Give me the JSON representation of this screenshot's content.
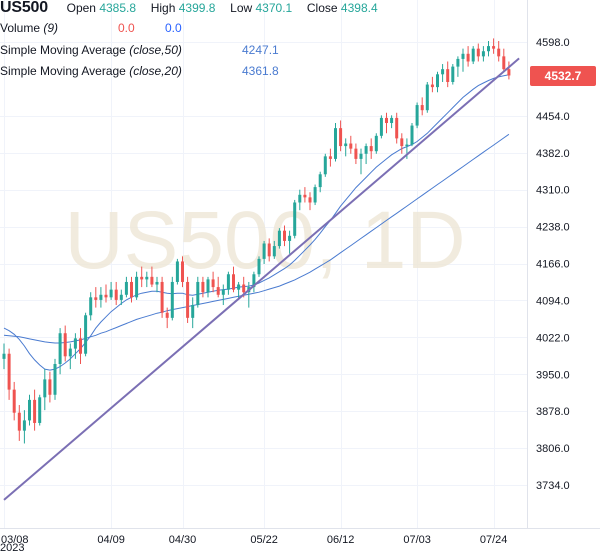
{
  "legend": {
    "symbol": "US500",
    "open_label": "Open",
    "open": "4385.8",
    "high_label": "High",
    "high": "4399.8",
    "low_label": "Low",
    "low": "4370.1",
    "close_label": "Close",
    "close": "4398.4",
    "volume_label": "Volume",
    "volume_param": "(9)",
    "volume_v1": "0.0",
    "volume_v2": "0.0",
    "sma50_label": "Simple Moving Average",
    "sma50_param": "(close,50)",
    "sma50_value": "4247.1",
    "sma20_label": "Simple Moving Average",
    "sma20_param": "(close,20)",
    "sma20_value": "4361.8"
  },
  "watermark": "US500, 1D",
  "last_price": "4532.7",
  "x_year": "2023",
  "colors": {
    "up": "#26a69a",
    "down": "#ef5350",
    "sma20": "#4a7bd0",
    "sma50": "#4a7bd0",
    "trendline": "#7b6fb4"
  },
  "chart_data": {
    "type": "candlestick",
    "title": "US500",
    "timeframe": "1D",
    "ylim": [
      3680,
      4620
    ],
    "yticks": [
      3734,
      3806,
      3878,
      3950,
      4022,
      4094,
      4166,
      4238,
      4310,
      4382,
      4454,
      4598
    ],
    "ytick_labels": [
      "3734.0",
      "3806.0",
      "3878.0",
      "3950.0",
      "4022.0",
      "4094.0",
      "4166.0",
      "4238.0",
      "4310.0",
      "4382.0",
      "4454.0",
      "4598.0"
    ],
    "xticks": [
      "03/08",
      "04/09",
      "04/30",
      "05/22",
      "06/12",
      "07/03",
      "07/24"
    ],
    "xtick_index": [
      0,
      21,
      35,
      51,
      66,
      81,
      96
    ],
    "grid": true,
    "candles": [
      [
        3980,
        4010,
        3960,
        3990
      ],
      [
        3990,
        4000,
        3900,
        3920
      ],
      [
        3920,
        3935,
        3860,
        3875
      ],
      [
        3875,
        3890,
        3820,
        3840
      ],
      [
        3840,
        3880,
        3815,
        3860
      ],
      [
        3860,
        3910,
        3850,
        3900
      ],
      [
        3900,
        3920,
        3840,
        3855
      ],
      [
        3855,
        3910,
        3850,
        3905
      ],
      [
        3905,
        3960,
        3880,
        3940
      ],
      [
        3940,
        3955,
        3895,
        3910
      ],
      [
        3910,
        3980,
        3900,
        3970
      ],
      [
        3970,
        4040,
        3950,
        4030
      ],
      [
        4030,
        4045,
        3975,
        3985
      ],
      [
        3985,
        4010,
        3960,
        4000
      ],
      [
        4000,
        4030,
        3980,
        4020
      ],
      [
        4020,
        4040,
        3970,
        3990
      ],
      [
        3990,
        4070,
        3985,
        4065
      ],
      [
        4065,
        4110,
        4055,
        4100
      ],
      [
        4100,
        4120,
        4080,
        4095
      ],
      [
        4095,
        4120,
        4080,
        4105
      ],
      [
        4105,
        4125,
        4090,
        4100
      ],
      [
        4100,
        4130,
        4095,
        4115
      ],
      [
        4115,
        4130,
        4085,
        4095
      ],
      [
        4095,
        4115,
        4085,
        4105
      ],
      [
        4105,
        4140,
        4100,
        4130
      ],
      [
        4130,
        4140,
        4090,
        4100
      ],
      [
        4100,
        4150,
        4095,
        4140
      ],
      [
        4140,
        4160,
        4120,
        4135
      ],
      [
        4135,
        4150,
        4120,
        4140
      ],
      [
        4140,
        4160,
        4120,
        4125
      ],
      [
        4125,
        4140,
        4110,
        4130
      ],
      [
        4130,
        4140,
        4060,
        4070
      ],
      [
        4070,
        4080,
        4040,
        4060
      ],
      [
        4060,
        4140,
        4055,
        4130
      ],
      [
        4130,
        4175,
        4125,
        4170
      ],
      [
        4170,
        4180,
        4120,
        4130
      ],
      [
        4130,
        4140,
        4050,
        4060
      ],
      [
        4060,
        4100,
        4040,
        4085
      ],
      [
        4085,
        4140,
        4080,
        4130
      ],
      [
        4130,
        4140,
        4100,
        4110
      ],
      [
        4110,
        4140,
        4100,
        4135
      ],
      [
        4135,
        4150,
        4110,
        4120
      ],
      [
        4120,
        4140,
        4100,
        4105
      ],
      [
        4105,
        4125,
        4085,
        4115
      ],
      [
        4115,
        4150,
        4105,
        4145
      ],
      [
        4145,
        4160,
        4110,
        4115
      ],
      [
        4115,
        4130,
        4095,
        4125
      ],
      [
        4125,
        4140,
        4100,
        4110
      ],
      [
        4110,
        4130,
        4080,
        4120
      ],
      [
        4120,
        4150,
        4110,
        4145
      ],
      [
        4145,
        4180,
        4140,
        4175
      ],
      [
        4175,
        4210,
        4165,
        4205
      ],
      [
        4205,
        4215,
        4170,
        4180
      ],
      [
        4180,
        4210,
        4175,
        4200
      ],
      [
        4200,
        4235,
        4195,
        4230
      ],
      [
        4230,
        4240,
        4200,
        4210
      ],
      [
        4210,
        4230,
        4185,
        4220
      ],
      [
        4220,
        4290,
        4215,
        4285
      ],
      [
        4285,
        4310,
        4270,
        4300
      ],
      [
        4300,
        4315,
        4285,
        4295
      ],
      [
        4295,
        4305,
        4270,
        4285
      ],
      [
        4285,
        4320,
        4280,
        4315
      ],
      [
        4315,
        4345,
        4305,
        4340
      ],
      [
        4340,
        4380,
        4335,
        4375
      ],
      [
        4375,
        4390,
        4355,
        4370
      ],
      [
        4370,
        4440,
        4365,
        4430
      ],
      [
        4430,
        4445,
        4385,
        4395
      ],
      [
        4395,
        4410,
        4375,
        4400
      ],
      [
        4400,
        4415,
        4380,
        4390
      ],
      [
        4390,
        4400,
        4360,
        4370
      ],
      [
        4370,
        4390,
        4340,
        4380
      ],
      [
        4380,
        4400,
        4360,
        4395
      ],
      [
        4395,
        4410,
        4370,
        4385
      ],
      [
        4385,
        4420,
        4380,
        4415
      ],
      [
        4415,
        4455,
        4410,
        4450
      ],
      [
        4450,
        4460,
        4420,
        4440
      ],
      [
        4440,
        4455,
        4430,
        4450
      ],
      [
        4450,
        4460,
        4400,
        4410
      ],
      [
        4410,
        4420,
        4380,
        4395
      ],
      [
        4395,
        4410,
        4370,
        4398
      ],
      [
        4398,
        4440,
        4395,
        4435
      ],
      [
        4435,
        4480,
        4430,
        4475
      ],
      [
        4475,
        4490,
        4455,
        4465
      ],
      [
        4465,
        4520,
        4460,
        4515
      ],
      [
        4515,
        4530,
        4500,
        4510
      ],
      [
        4510,
        4540,
        4500,
        4535
      ],
      [
        4535,
        4555,
        4520,
        4545
      ],
      [
        4545,
        4560,
        4510,
        4520
      ],
      [
        4520,
        4555,
        4515,
        4550
      ],
      [
        4550,
        4570,
        4530,
        4565
      ],
      [
        4565,
        4585,
        4540,
        4575
      ],
      [
        4575,
        4590,
        4550,
        4560
      ],
      [
        4560,
        4590,
        4555,
        4585
      ],
      [
        4585,
        4595,
        4560,
        4570
      ],
      [
        4570,
        4590,
        4560,
        4580
      ],
      [
        4580,
        4600,
        4570,
        4590
      ],
      [
        4590,
        4605,
        4575,
        4585
      ],
      [
        4585,
        4600,
        4560,
        4570
      ],
      [
        4570,
        4585,
        4540,
        4545
      ],
      [
        4545,
        4560,
        4525,
        4532.7
      ]
    ],
    "sma20": [
      4040,
      4035,
      4028,
      4018,
      4005,
      3990,
      3978,
      3968,
      3960,
      3958,
      3960,
      3965,
      3972,
      3980,
      3990,
      4000,
      4012,
      4025,
      4040,
      4052,
      4062,
      4072,
      4080,
      4088,
      4095,
      4100,
      4105,
      4108,
      4110,
      4112,
      4112,
      4110,
      4108,
      4107,
      4108,
      4108,
      4105,
      4104,
      4106,
      4108,
      4110,
      4112,
      4114,
      4115,
      4116,
      4118,
      4120,
      4121,
      4122,
      4124,
      4128,
      4133,
      4138,
      4144,
      4150,
      4156,
      4163,
      4172,
      4182,
      4192,
      4202,
      4213,
      4225,
      4238,
      4250,
      4264,
      4278,
      4290,
      4302,
      4314,
      4324,
      4334,
      4344,
      4354,
      4362,
      4370,
      4378,
      4384,
      4390,
      4394,
      4398,
      4404,
      4412,
      4420,
      4430,
      4440,
      4450,
      4460,
      4470,
      4480,
      4490,
      4498,
      4506,
      4513,
      4518,
      4523,
      4527,
      4530,
      4532,
      4534
    ],
    "sma50": [
      4026,
      4025,
      4024,
      4023,
      4021,
      4019,
      4017,
      4015,
      4013,
      4012,
      4011,
      4011,
      4012,
      4013,
      4015,
      4017,
      4020,
      4023,
      4026,
      4030,
      4033,
      4037,
      4041,
      4045,
      4049,
      4053,
      4057,
      4060,
      4063,
      4066,
      4069,
      4071,
      4074,
      4076,
      4078,
      4080,
      4082,
      4084,
      4086,
      4088,
      4090,
      4092,
      4094,
      4096,
      4098,
      4100,
      4102,
      4104,
      4106,
      4108,
      4110,
      4113,
      4116,
      4119,
      4122,
      4126,
      4130,
      4134,
      4139,
      4144,
      4149,
      4155,
      4161,
      4167,
      4173,
      4180,
      4187,
      4194,
      4201,
      4208,
      4215,
      4222,
      4229,
      4236,
      4243,
      4250,
      4257,
      4264,
      4271,
      4278,
      4285,
      4292,
      4299,
      4306,
      4313,
      4320,
      4327,
      4334,
      4341,
      4348,
      4355,
      4362,
      4369,
      4376,
      4383,
      4390,
      4397,
      4404,
      4411,
      4418
    ],
    "trendline": [
      [
        0,
        3705
      ],
      [
        101,
        4566
      ]
    ]
  }
}
